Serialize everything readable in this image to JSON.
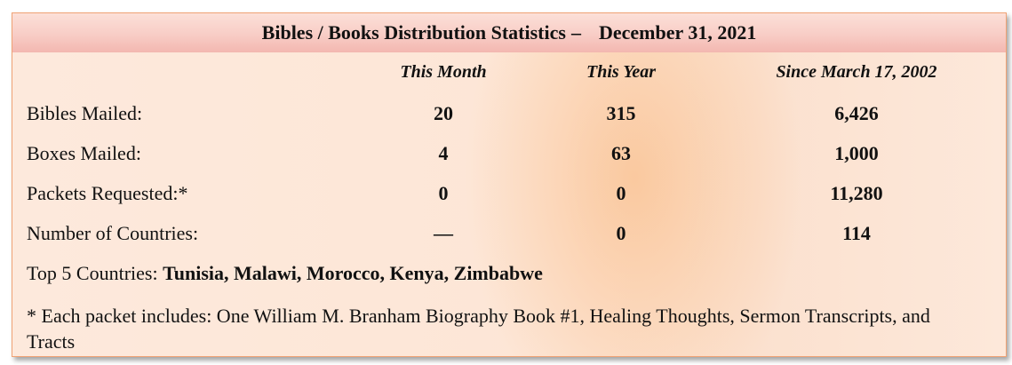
{
  "header": {
    "title": "Bibles / Books Distribution Statistics",
    "separator": "–",
    "date": "December 31, 2021"
  },
  "columns": {
    "this_month": "This Month",
    "this_year": "This Year",
    "since": "Since March 17, 2002"
  },
  "rows": [
    {
      "label": "Bibles Mailed:",
      "this_month": "20",
      "this_year": "315",
      "since": "6,426"
    },
    {
      "label": "Boxes Mailed:",
      "this_month": "4",
      "this_year": "63",
      "since": "1,000"
    },
    {
      "label": "Packets Requested:*",
      "this_month": "0",
      "this_year": "0",
      "since": "11,280"
    },
    {
      "label": "Number of Countries:",
      "this_month": "—",
      "this_year": "0",
      "since": "114"
    }
  ],
  "top_countries": {
    "label": "Top 5 Countries:",
    "list": "Tunisia, Malawi, Morocco, Kenya, Zimbabwe"
  },
  "footnote": "* Each packet includes: One William M. Branham Biography Book #1, Healing Thoughts, Sermon Transcripts, and Tracts"
}
